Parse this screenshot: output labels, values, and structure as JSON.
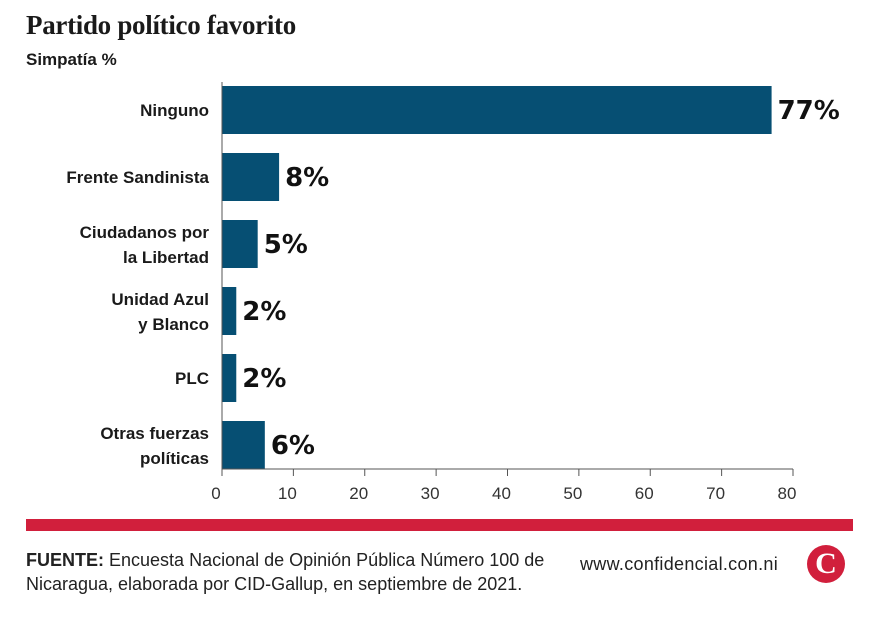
{
  "header": {
    "title": "Partido político favorito",
    "subtitle": "Simpatía %"
  },
  "chart_data": {
    "type": "bar",
    "orientation": "horizontal",
    "title": "Partido político favorito",
    "ylabel": "Simpatía %",
    "categories": [
      [
        "Ninguno"
      ],
      [
        "Frente Sandinista"
      ],
      [
        "Ciudadanos por",
        "la Libertad"
      ],
      [
        "Unidad Azul",
        "y Blanco"
      ],
      [
        "PLC"
      ],
      [
        "Otras fuerzas",
        "políticas"
      ]
    ],
    "values": [
      77,
      8,
      5,
      2,
      2,
      6
    ],
    "value_labels": [
      "77%",
      "8%",
      "5%",
      "2%",
      "2%",
      "6%"
    ],
    "xlim": [
      0,
      80
    ],
    "xticks": [
      0,
      10,
      20,
      30,
      40,
      50,
      60,
      70,
      80
    ],
    "bar_color": "#064f73",
    "grid": false
  },
  "footer": {
    "source_label": "FUENTE:",
    "source_text": "Encuesta Nacional de Opinión Pública Número 100 de Nicaragua, elaborada por CID-Gallup, en septiembre de 2021.",
    "website": "www.confidencial.con.ni",
    "logo_letter": "C",
    "accent_color": "#d11f3c"
  }
}
